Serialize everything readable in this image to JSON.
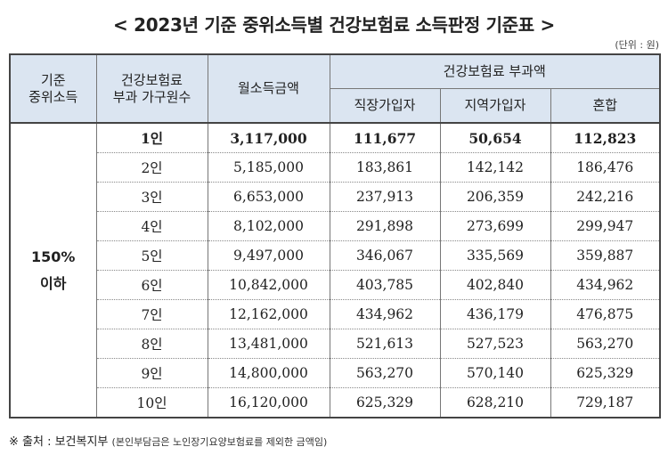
{
  "title": "< 2023년 기준 중위소득별 건강보험료 소득판정 기준표 >",
  "unit": "(단위 : 원)",
  "header": {
    "col1_line1": "기준",
    "col1_line2": "중위소득",
    "col2_line1": "건강보험료",
    "col2_line2": "부과 가구원수",
    "col3": "월소득금액",
    "group": "건강보험료 부과액",
    "sub1": "직장가입자",
    "sub2": "지역가입자",
    "sub3": "혼합"
  },
  "group_label_line1": "150%",
  "group_label_line2": "이하",
  "rows": [
    {
      "members": "1인",
      "income": "3,117,000",
      "workplace": "111,677",
      "regional": "50,654",
      "mixed": "112,823"
    },
    {
      "members": "2인",
      "income": "5,185,000",
      "workplace": "183,861",
      "regional": "142,142",
      "mixed": "186,476"
    },
    {
      "members": "3인",
      "income": "6,653,000",
      "workplace": "237,913",
      "regional": "206,359",
      "mixed": "242,216"
    },
    {
      "members": "4인",
      "income": "8,102,000",
      "workplace": "291,898",
      "regional": "273,699",
      "mixed": "299,947"
    },
    {
      "members": "5인",
      "income": "9,497,000",
      "workplace": "346,067",
      "regional": "335,569",
      "mixed": "359,887"
    },
    {
      "members": "6인",
      "income": "10,842,000",
      "workplace": "403,785",
      "regional": "402,840",
      "mixed": "434,962"
    },
    {
      "members": "7인",
      "income": "12,162,000",
      "workplace": "434,962",
      "regional": "436,179",
      "mixed": "476,875"
    },
    {
      "members": "8인",
      "income": "13,481,000",
      "workplace": "521,613",
      "regional": "527,523",
      "mixed": "563,270"
    },
    {
      "members": "9인",
      "income": "14,800,000",
      "workplace": "563,270",
      "regional": "570,140",
      "mixed": "625,329"
    },
    {
      "members": "10인",
      "income": "16,120,000",
      "workplace": "625,329",
      "regional": "628,210",
      "mixed": "729,187"
    }
  ],
  "source_main": "※ 출처 : 보건복지부",
  "source_note": "(본인부담금은 노인장기요양보험료를 제외한 금액임)"
}
